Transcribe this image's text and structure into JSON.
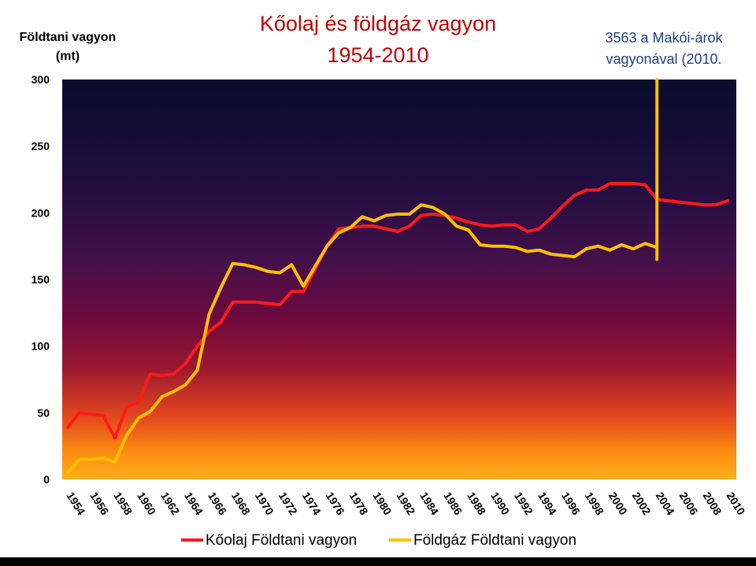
{
  "chart_data": {
    "type": "line",
    "title": "Kőolaj és földgáz vagyon",
    "subtitle": "1954-2010",
    "ylabel": "Földtani vagyon (mt)",
    "ylabel_lines": [
      "Földtani vagyon",
      "(mt)"
    ],
    "xlabel": "",
    "annotation_lines": [
      "3563 a Makói-árok",
      "vagyonával (2010."
    ],
    "ylim": [
      0,
      300
    ],
    "yticks": [
      0,
      50,
      100,
      150,
      200,
      250,
      300
    ],
    "xlim": [
      1954,
      2010
    ],
    "xticks": [
      1954,
      1956,
      1958,
      1960,
      1962,
      1964,
      1966,
      1968,
      1970,
      1972,
      1974,
      1976,
      1978,
      1980,
      1982,
      1984,
      1986,
      1988,
      1990,
      1992,
      1994,
      1996,
      1998,
      2000,
      2002,
      2004,
      2006,
      2008,
      2010
    ],
    "legend_placement": "bottom",
    "grid": false,
    "background": "gradient (dark navy top to orange bottom)",
    "series": [
      {
        "name": "Kőolaj Földtani vagyon",
        "color": "#ff1a1a",
        "x": [
          1954,
          1955,
          1956,
          1957,
          1958,
          1959,
          1960,
          1961,
          1962,
          1963,
          1964,
          1965,
          1966,
          1967,
          1968,
          1969,
          1970,
          1971,
          1972,
          1973,
          1974,
          1975,
          1976,
          1977,
          1978,
          1979,
          1980,
          1981,
          1982,
          1983,
          1984,
          1985,
          1986,
          1987,
          1988,
          1989,
          1990,
          1991,
          1992,
          1993,
          1994,
          1995,
          1996,
          1997,
          1998,
          1999,
          2000,
          2001,
          2002,
          2003,
          2004,
          2005,
          2006,
          2007,
          2008,
          2009,
          2010
        ],
        "values": [
          39,
          50,
          49,
          48,
          31,
          54,
          58,
          79,
          78,
          79,
          87,
          100,
          111,
          118,
          133,
          133,
          133,
          132,
          131,
          141,
          141,
          158,
          175,
          188,
          189,
          190,
          190,
          188,
          186,
          190,
          198,
          199,
          198,
          196,
          193,
          191,
          190,
          191,
          191,
          186,
          188,
          196,
          205,
          213,
          217,
          217,
          222,
          222,
          222,
          221,
          210,
          209,
          208,
          207,
          206,
          206,
          209
        ]
      },
      {
        "name": "Földgáz Földtani vagyon",
        "color": "#ffc000",
        "x": [
          1954,
          1955,
          1956,
          1957,
          1958,
          1959,
          1960,
          1961,
          1962,
          1963,
          1964,
          1965,
          1966,
          1967,
          1968,
          1969,
          1970,
          1971,
          1972,
          1973,
          1974,
          1975,
          1976,
          1977,
          1978,
          1979,
          1980,
          1981,
          1982,
          1983,
          1984,
          1985,
          1986,
          1987,
          1988,
          1989,
          1990,
          1991,
          1992,
          1993,
          1994,
          1995,
          1996,
          1997,
          1998,
          1999,
          2000,
          2001,
          2002,
          2003,
          2004,
          2004,
          2004
        ],
        "values": [
          5,
          15,
          15,
          16,
          13,
          33,
          46,
          51,
          62,
          66,
          71,
          82,
          124,
          144,
          162,
          161,
          159,
          156,
          155,
          161,
          145,
          160,
          175,
          185,
          189,
          197,
          194,
          198,
          199,
          199,
          206,
          204,
          199,
          190,
          187,
          176,
          175,
          175,
          174,
          171,
          172,
          169,
          168,
          167,
          173,
          175,
          172,
          176,
          173,
          177,
          174,
          165,
          300
        ]
      }
    ]
  }
}
